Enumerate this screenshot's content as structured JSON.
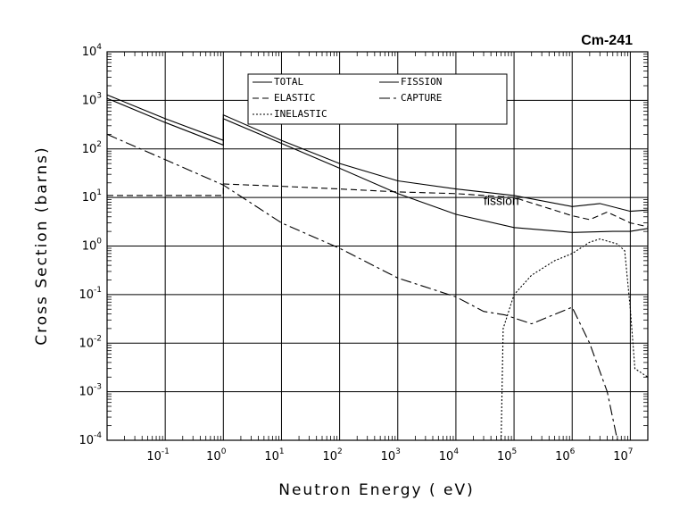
{
  "chart_data": {
    "type": "line",
    "title": "Cm-241",
    "xlabel": "Neutron Energy ( eV)",
    "ylabel": "Cross Section (barns)",
    "xscale": "log",
    "yscale": "log",
    "xlim": [
      0.01,
      20000000
    ],
    "ylim": [
      0.0001,
      10000
    ],
    "grid": true,
    "legend_position": "top-center",
    "x_ticks": [
      {
        "base": "10",
        "exp": "-1",
        "value": 0.1
      },
      {
        "base": "10",
        "exp": "0",
        "value": 1
      },
      {
        "base": "10",
        "exp": "1",
        "value": 10
      },
      {
        "base": "10",
        "exp": "2",
        "value": 100
      },
      {
        "base": "10",
        "exp": "3",
        "value": 1000
      },
      {
        "base": "10",
        "exp": "4",
        "value": 10000
      },
      {
        "base": "10",
        "exp": "5",
        "value": 100000
      },
      {
        "base": "10",
        "exp": "6",
        "value": 1000000
      },
      {
        "base": "10",
        "exp": "7",
        "value": 10000000
      }
    ],
    "y_ticks": [
      {
        "base": "10",
        "exp": "-4",
        "value": 0.0001
      },
      {
        "base": "10",
        "exp": "-3",
        "value": 0.001
      },
      {
        "base": "10",
        "exp": "-2",
        "value": 0.01
      },
      {
        "base": "10",
        "exp": "-1",
        "value": 0.1
      },
      {
        "base": "10",
        "exp": "0",
        "value": 1
      },
      {
        "base": "10",
        "exp": "1",
        "value": 10
      },
      {
        "base": "10",
        "exp": "2",
        "value": 100
      },
      {
        "base": "10",
        "exp": "3",
        "value": 1000
      },
      {
        "base": "10",
        "exp": "4",
        "value": 10000
      }
    ],
    "annotations": [
      {
        "text": "fission",
        "x": 30000,
        "y": 7
      }
    ],
    "series": [
      {
        "name": "TOTAL",
        "style": "solid",
        "points": [
          [
            0.01,
            1300
          ],
          [
            0.1,
            420
          ],
          [
            1,
            150
          ],
          [
            1,
            500
          ],
          [
            10,
            150
          ],
          [
            100,
            50
          ],
          [
            1000,
            22
          ],
          [
            10000,
            15
          ],
          [
            100000,
            11
          ],
          [
            1000000,
            6.5
          ],
          [
            3000000,
            7.5
          ],
          [
            10000000,
            5.2
          ],
          [
            20000000,
            5.5
          ]
        ]
      },
      {
        "name": "FISSION",
        "style": "solid",
        "points": [
          [
            0.01,
            1100
          ],
          [
            0.1,
            350
          ],
          [
            1,
            120
          ],
          [
            1,
            420
          ],
          [
            10,
            130
          ],
          [
            100,
            40
          ],
          [
            1000,
            12
          ],
          [
            10000,
            4.5
          ],
          [
            100000,
            2.4
          ],
          [
            1000000,
            1.9
          ],
          [
            5000000,
            2.0
          ],
          [
            10000000,
            2.0
          ],
          [
            20000000,
            2.3
          ]
        ]
      },
      {
        "name": "ELASTIC",
        "style": "dashed",
        "points": [
          [
            0.01,
            11
          ],
          [
            1,
            11
          ],
          [
            1,
            19
          ],
          [
            10,
            17
          ],
          [
            100,
            15
          ],
          [
            1000,
            13
          ],
          [
            10000,
            12
          ],
          [
            100000,
            10
          ],
          [
            1000000,
            4.2
          ],
          [
            2000000,
            3.5
          ],
          [
            4000000,
            5
          ],
          [
            10000000,
            3
          ],
          [
            20000000,
            2.5
          ]
        ]
      },
      {
        "name": "CAPTURE",
        "style": "dash-dot",
        "points": [
          [
            0.01,
            200
          ],
          [
            0.1,
            60
          ],
          [
            1,
            18
          ],
          [
            10,
            3
          ],
          [
            100,
            0.9
          ],
          [
            1000,
            0.22
          ],
          [
            10000,
            0.09
          ],
          [
            30000,
            0.045
          ],
          [
            70000,
            0.038
          ],
          [
            200000,
            0.025
          ],
          [
            1000000,
            0.055
          ],
          [
            2000000,
            0.01
          ],
          [
            4000000,
            0.001
          ],
          [
            6000000,
            0.0001
          ]
        ]
      },
      {
        "name": "INELASTIC",
        "style": "dotted",
        "points": [
          [
            60000,
            0.0001
          ],
          [
            65000,
            0.02
          ],
          [
            100000,
            0.1
          ],
          [
            200000,
            0.25
          ],
          [
            500000,
            0.5
          ],
          [
            1000000,
            0.7
          ],
          [
            2000000,
            1.2
          ],
          [
            3000000,
            1.4
          ],
          [
            6000000,
            1.1
          ],
          [
            8000000,
            0.8
          ],
          [
            10000000,
            0.05
          ],
          [
            12000000,
            0.003
          ],
          [
            20000000,
            0.002
          ]
        ]
      }
    ]
  }
}
